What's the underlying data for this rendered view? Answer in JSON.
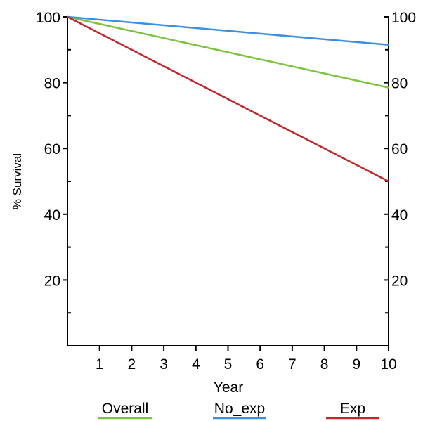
{
  "chart_data": {
    "type": "line",
    "title": "",
    "xlabel": "Year",
    "ylabel": "% Survival",
    "xlim": [
      0,
      10
    ],
    "ylim": [
      0,
      100
    ],
    "x_ticks": [
      1,
      2,
      3,
      4,
      5,
      6,
      7,
      8,
      9,
      10
    ],
    "y_ticks_left": [
      20,
      40,
      60,
      80,
      100
    ],
    "y_ticks_right": [
      20,
      40,
      60,
      80,
      100
    ],
    "y_minor_ticks": [
      10,
      30,
      50,
      70,
      90
    ],
    "grid": false,
    "legend_position": "bottom",
    "series": [
      {
        "name": "Overall",
        "color": "#7dc242",
        "x": [
          0,
          10
        ],
        "y": [
          100,
          78.5
        ]
      },
      {
        "name": "No_exp",
        "color": "#3b8fe0",
        "x": [
          0,
          10
        ],
        "y": [
          100,
          91.5
        ]
      },
      {
        "name": "Exp",
        "color": "#c0282d",
        "x": [
          0,
          10
        ],
        "y": [
          100,
          50
        ]
      }
    ]
  }
}
